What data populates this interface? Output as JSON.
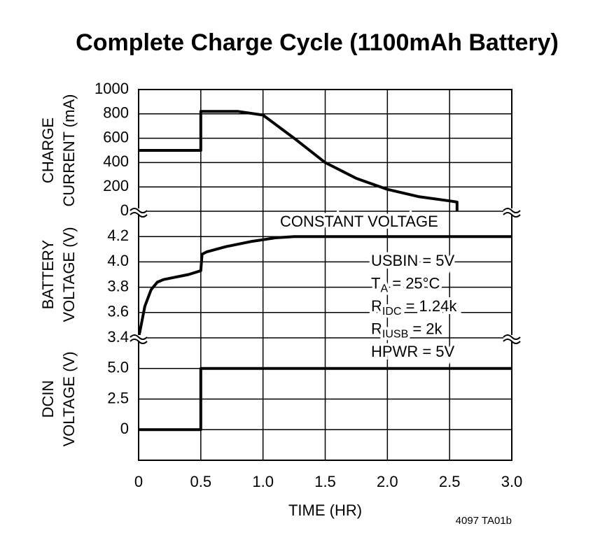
{
  "title": "Complete Charge Cycle (1100mAh Battery)",
  "footnote": "4097 TA01b",
  "chart_data": [
    {
      "type": "line",
      "ylabel": [
        "CHARGE",
        "CURRENT (mA)"
      ],
      "color": "#000000",
      "x": [
        0,
        0.5,
        0.5,
        0.8,
        1.0,
        1.25,
        1.5,
        1.75,
        2.0,
        2.25,
        2.5,
        2.56,
        2.56
      ],
      "values": [
        500,
        500,
        820,
        820,
        790,
        600,
        400,
        270,
        180,
        120,
        85,
        75,
        0
      ],
      "ylim": [
        0,
        1000
      ],
      "yticks": [
        0,
        200,
        400,
        600,
        800,
        1000
      ],
      "xlim": [
        0,
        3
      ],
      "grid": true
    },
    {
      "type": "line",
      "ylabel": [
        "BATTERY",
        "VOLTAGE (V)"
      ],
      "color": "#000000",
      "x": [
        0,
        0.02,
        0.05,
        0.1,
        0.15,
        0.2,
        0.3,
        0.4,
        0.5,
        0.51,
        0.55,
        0.7,
        0.9,
        1.1,
        1.25,
        3.0
      ],
      "values": [
        3.4,
        3.5,
        3.65,
        3.78,
        3.84,
        3.86,
        3.88,
        3.9,
        3.93,
        4.06,
        4.08,
        4.12,
        4.16,
        4.19,
        4.2,
        4.2
      ],
      "ylim": [
        3.4,
        4.4
      ],
      "yticks": [
        3.4,
        3.6,
        3.8,
        {
          "value": 4.0,
          "label": "4.0"
        },
        4.2
      ],
      "xlim": [
        0,
        3
      ],
      "grid": true,
      "annotations": [
        "CONSTANT VOLTAGE",
        "USBIN = 5V",
        {
          "text": "T",
          "sub": "A",
          "rest": " = 25°C"
        },
        {
          "text": "R",
          "sub": "IDC",
          "rest": " = 1.24k"
        },
        {
          "text": "R",
          "sub": "IUSB",
          "rest": " = 2k"
        },
        "HPWR = 5V"
      ]
    },
    {
      "type": "line",
      "ylabel": [
        "DCIN",
        "VOLTAGE (V)"
      ],
      "color": "#000000",
      "x": [
        0,
        0.5,
        0.5,
        3.0
      ],
      "values": [
        0,
        0,
        5,
        5
      ],
      "ylim": [
        -2.5,
        7.5
      ],
      "yticks": [
        0,
        2.5,
        {
          "value": 5,
          "label": "5.0"
        }
      ],
      "xlim": [
        0,
        3
      ],
      "grid": true,
      "xlabel": "TIME (HR)",
      "xticks": [
        0,
        {
          "value": 0.5,
          "label": "0.5"
        },
        {
          "value": 1,
          "label": "1.0"
        },
        {
          "value": 1.5,
          "label": "1.5"
        },
        {
          "value": 2,
          "label": "2.0"
        },
        {
          "value": 2.5,
          "label": "2.5"
        },
        {
          "value": 3,
          "label": "3.0"
        }
      ]
    }
  ]
}
